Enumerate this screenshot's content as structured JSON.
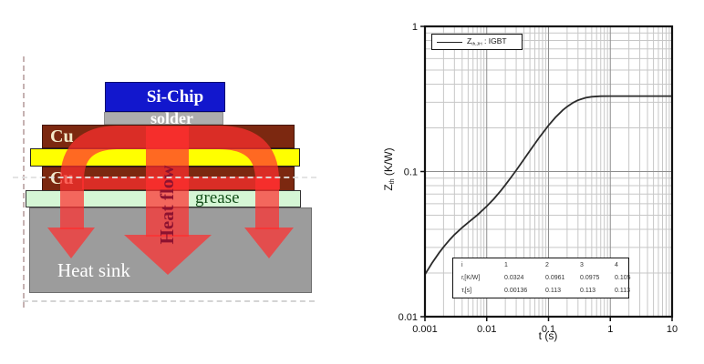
{
  "diagram": {
    "si_chip_label": "Si-Chip",
    "solder_label": "solder",
    "cu_top_label": "Cu",
    "cu_bottom_label": "Cu",
    "grease_label": "grease",
    "heat_sink_label": "Heat sink",
    "heat_flow_label": "Heat flow",
    "colors": {
      "chip": "#1217cd",
      "solder": "#adadad",
      "cu": "#7c2810",
      "ceramic": "#ffff00",
      "grease": "#d5f6d5",
      "sink": "#9c9c9c",
      "arrow": "rgba(255,47,47,0.72)",
      "heatflowtext": "#8d1230",
      "culabel": "#f2e8c8",
      "greasetext": "#14501a"
    }
  },
  "chart_data": {
    "type": "line",
    "title": "",
    "xlabel": "t (s)",
    "ylabel": {
      "main": "Z",
      "sub": "th",
      "unit": " (K/W)"
    },
    "xscale": "log",
    "yscale": "log",
    "xlim": [
      0.001,
      10
    ],
    "ylim": [
      0.01,
      1
    ],
    "grid": {
      "minor": true,
      "major": true
    },
    "x_ticks": [
      [
        0.001,
        "0.001"
      ],
      [
        0.01,
        "0.01"
      ],
      [
        0.1,
        "0.1"
      ],
      [
        1,
        "1"
      ],
      [
        10,
        "10"
      ]
    ],
    "y_ticks": [
      [
        1,
        "1"
      ],
      [
        0.1,
        "0.1"
      ],
      [
        0.01,
        "0.01"
      ]
    ],
    "legend": {
      "position": "top-left",
      "main": "Z",
      "sub": "th,JH",
      "rest": " : IGBT"
    },
    "series": [
      {
        "name": "Zth,JH : IGBT",
        "points": [
          [
            0.001,
            0.0195
          ],
          [
            0.0013,
            0.0234
          ],
          [
            0.0017,
            0.0276
          ],
          [
            0.002,
            0.0302
          ],
          [
            0.0025,
            0.0338
          ],
          [
            0.003,
            0.0367
          ],
          [
            0.004,
            0.0411
          ],
          [
            0.005,
            0.0445
          ],
          [
            0.007,
            0.0501
          ],
          [
            0.01,
            0.0577
          ],
          [
            0.013,
            0.0648
          ],
          [
            0.017,
            0.0741
          ],
          [
            0.02,
            0.0808
          ],
          [
            0.025,
            0.0917
          ],
          [
            0.03,
            0.102
          ],
          [
            0.04,
            0.1214
          ],
          [
            0.05,
            0.1392
          ],
          [
            0.07,
            0.1703
          ],
          [
            0.1,
            0.2078
          ],
          [
            0.13,
            0.2365
          ],
          [
            0.17,
            0.2647
          ],
          [
            0.2,
            0.2801
          ],
          [
            0.25,
            0.2983
          ],
          [
            0.3,
            0.31
          ],
          [
            0.4,
            0.3223
          ],
          [
            0.5,
            0.3274
          ],
          [
            0.7,
            0.3304
          ],
          [
            1,
            0.331
          ],
          [
            2,
            0.331
          ],
          [
            5,
            0.331
          ],
          [
            10,
            0.331
          ]
        ]
      }
    ],
    "foster_table": {
      "index_label": "i",
      "indices": [
        "1",
        "2",
        "3",
        "4"
      ],
      "rows": [
        {
          "main": "r",
          "sub": "i",
          "unit": "[K/W]",
          "values": [
            "0.0324",
            "0.0961",
            "0.0975",
            "0.105"
          ]
        },
        {
          "main": "τ",
          "sub": "i",
          "unit": "[s]",
          "values": [
            "0.00136",
            "0.113",
            "0.113",
            "0.113"
          ]
        }
      ]
    },
    "colors": {
      "curve": "#2b2b2b",
      "grid_minor": "#c7c7c7",
      "grid_major": "#8e8e8e",
      "frame": "#111111"
    }
  }
}
